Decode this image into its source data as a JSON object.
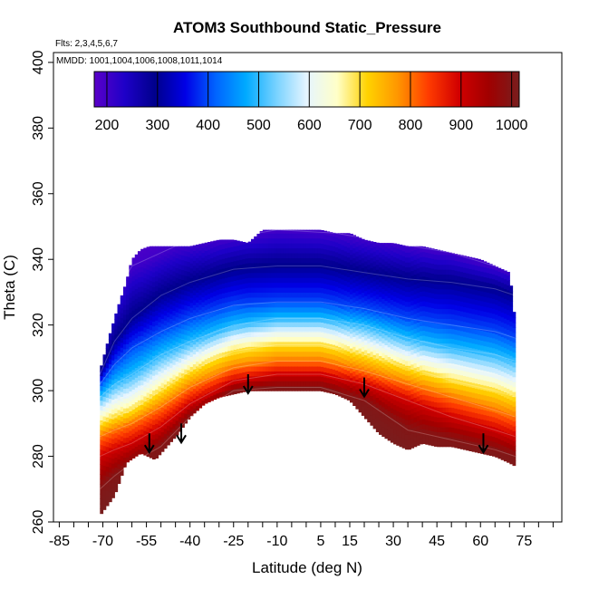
{
  "chart_data": {
    "type": "heatmap",
    "title": "ATOM3 Southbound Static_Pressure",
    "flights_label": "Flts: 2,3,4,5,6,7",
    "dates_label": "MMDD: 1001,1004,1006,1008,1011,1014",
    "xlabel": "Latitude (deg N)",
    "ylabel": "Theta (C)",
    "xlim": [
      -87,
      88
    ],
    "ylim": [
      260,
      403
    ],
    "x_tick_labels": [
      "-85",
      "-70",
      "-55",
      "-40",
      "-25",
      "-10",
      "5",
      "15",
      "30",
      "45",
      "60",
      "75"
    ],
    "x_minor_ticks": [
      -85,
      -80,
      -75,
      -70,
      -65,
      -60,
      -55,
      -50,
      -45,
      -40,
      -35,
      -30,
      -25,
      -20,
      -15,
      -10,
      -5,
      0,
      5,
      10,
      15,
      20,
      25,
      30,
      35,
      40,
      45,
      50,
      55,
      60,
      65,
      70,
      75,
      80,
      85
    ],
    "y_ticks": [
      "260",
      "280",
      "300",
      "320",
      "340",
      "360",
      "380",
      "400"
    ],
    "colorbar": {
      "labels": [
        "200",
        "300",
        "400",
        "500",
        "600",
        "700",
        "800",
        "900",
        "1000"
      ],
      "range": [
        175,
        1015
      ],
      "colors": [
        "#5a00c8",
        "#1e00c8",
        "#00008c",
        "#0000e6",
        "#0064ff",
        "#00aaff",
        "#78d2ff",
        "#e6f5ff",
        "#ffffc8",
        "#ffd200",
        "#ff9600",
        "#ff3c00",
        "#d20000",
        "#a00000",
        "#781e1e"
      ]
    },
    "lower_boundary": [
      [
        -71,
        262
      ],
      [
        -66,
        268
      ],
      [
        -62,
        278
      ],
      [
        -57,
        281
      ],
      [
        -52,
        279
      ],
      [
        -48,
        283
      ],
      [
        -44,
        287
      ],
      [
        -40,
        292
      ],
      [
        -35,
        296
      ],
      [
        -30,
        298
      ],
      [
        -25,
        299
      ],
      [
        -20,
        300
      ],
      [
        -15,
        300
      ],
      [
        -10,
        300
      ],
      [
        -5,
        300
      ],
      [
        0,
        300
      ],
      [
        5,
        300
      ],
      [
        10,
        299
      ],
      [
        15,
        297
      ],
      [
        20,
        292
      ],
      [
        25,
        287
      ],
      [
        30,
        284
      ],
      [
        35,
        282
      ],
      [
        40,
        284
      ],
      [
        45,
        283
      ],
      [
        50,
        283
      ],
      [
        55,
        282
      ],
      [
        60,
        281
      ],
      [
        65,
        280
      ],
      [
        70,
        278
      ],
      [
        72,
        277
      ]
    ],
    "upper_boundary": [
      [
        -71,
        306
      ],
      [
        -68,
        316
      ],
      [
        -65,
        325
      ],
      [
        -62,
        333
      ],
      [
        -60,
        340
      ],
      [
        -57,
        343
      ],
      [
        -54,
        344
      ],
      [
        -50,
        344
      ],
      [
        -45,
        344
      ],
      [
        -40,
        344
      ],
      [
        -35,
        345
      ],
      [
        -30,
        346
      ],
      [
        -25,
        346
      ],
      [
        -20,
        345
      ],
      [
        -15,
        349
      ],
      [
        -10,
        349
      ],
      [
        -5,
        349
      ],
      [
        0,
        349
      ],
      [
        5,
        349
      ],
      [
        10,
        348
      ],
      [
        15,
        348
      ],
      [
        20,
        346
      ],
      [
        25,
        345
      ],
      [
        30,
        345
      ],
      [
        35,
        344
      ],
      [
        40,
        344
      ],
      [
        45,
        343
      ],
      [
        50,
        342
      ],
      [
        55,
        341
      ],
      [
        60,
        340
      ],
      [
        65,
        338
      ],
      [
        70,
        336
      ],
      [
        72,
        320
      ]
    ],
    "isobars": [
      {
        "level": 200,
        "points": [
          [
            -71,
            312
          ],
          [
            -65,
            330
          ],
          [
            -60,
            338
          ],
          [
            -45,
            344
          ],
          [
            -30,
            346
          ],
          [
            -10,
            349
          ],
          [
            10,
            348
          ],
          [
            30,
            345
          ],
          [
            50,
            342
          ],
          [
            72,
            336
          ]
        ]
      },
      {
        "level": 300,
        "points": [
          [
            -71,
            305
          ],
          [
            -66,
            315
          ],
          [
            -60,
            322
          ],
          [
            -50,
            329
          ],
          [
            -40,
            333
          ],
          [
            -25,
            337
          ],
          [
            -10,
            338
          ],
          [
            5,
            338
          ],
          [
            20,
            336
          ],
          [
            35,
            334
          ],
          [
            50,
            333
          ],
          [
            65,
            331
          ],
          [
            72,
            329
          ]
        ]
      },
      {
        "level": 400,
        "points": [
          [
            -71,
            302
          ],
          [
            -66,
            308
          ],
          [
            -60,
            313
          ],
          [
            -50,
            318
          ],
          [
            -40,
            322
          ],
          [
            -25,
            326
          ],
          [
            -10,
            327
          ],
          [
            5,
            327
          ],
          [
            20,
            325
          ],
          [
            35,
            322
          ],
          [
            50,
            320
          ],
          [
            65,
            318
          ],
          [
            72,
            316
          ]
        ]
      },
      {
        "level": 500,
        "points": [
          [
            -71,
            298
          ],
          [
            -66,
            302
          ],
          [
            -60,
            305
          ],
          [
            -50,
            311
          ],
          [
            -40,
            315
          ],
          [
            -25,
            320
          ],
          [
            -10,
            322
          ],
          [
            5,
            322
          ],
          [
            20,
            320
          ],
          [
            35,
            316
          ],
          [
            50,
            313
          ],
          [
            65,
            311
          ],
          [
            72,
            309
          ]
        ]
      },
      {
        "level": 600,
        "points": [
          [
            -71,
            294
          ],
          [
            -66,
            297
          ],
          [
            -60,
            299
          ],
          [
            -50,
            305
          ],
          [
            -40,
            310
          ],
          [
            -25,
            316
          ],
          [
            -10,
            318
          ],
          [
            5,
            318
          ],
          [
            20,
            315
          ],
          [
            35,
            311
          ],
          [
            50,
            308
          ],
          [
            65,
            305
          ],
          [
            72,
            303
          ]
        ]
      },
      {
        "level": 700,
        "points": [
          [
            -71,
            290
          ],
          [
            -66,
            292
          ],
          [
            -60,
            294
          ],
          [
            -50,
            300
          ],
          [
            -40,
            306
          ],
          [
            -25,
            312
          ],
          [
            -10,
            314
          ],
          [
            5,
            314
          ],
          [
            20,
            311
          ],
          [
            35,
            307
          ],
          [
            50,
            303
          ],
          [
            65,
            300
          ],
          [
            72,
            298
          ]
        ]
      },
      {
        "level": 800,
        "points": [
          [
            -71,
            286
          ],
          [
            -66,
            288
          ],
          [
            -60,
            290
          ],
          [
            -50,
            295
          ],
          [
            -40,
            301
          ],
          [
            -25,
            307
          ],
          [
            -10,
            309
          ],
          [
            5,
            309
          ],
          [
            20,
            306
          ],
          [
            35,
            302
          ],
          [
            50,
            298
          ],
          [
            65,
            294
          ],
          [
            72,
            292
          ]
        ]
      },
      {
        "level": 900,
        "points": [
          [
            -71,
            280
          ],
          [
            -66,
            282
          ],
          [
            -60,
            284
          ],
          [
            -50,
            289
          ],
          [
            -40,
            296
          ],
          [
            -25,
            303
          ],
          [
            -10,
            305
          ],
          [
            5,
            305
          ],
          [
            20,
            302
          ],
          [
            35,
            297
          ],
          [
            50,
            292
          ],
          [
            65,
            288
          ],
          [
            72,
            286
          ]
        ]
      },
      {
        "level": 1000,
        "points": [
          [
            -71,
            270
          ],
          [
            -66,
            274
          ],
          [
            -60,
            278
          ],
          [
            -50,
            283
          ],
          [
            -40,
            292
          ],
          [
            -25,
            300
          ],
          [
            -10,
            301
          ],
          [
            5,
            301
          ],
          [
            20,
            297
          ],
          [
            35,
            288
          ],
          [
            50,
            285
          ],
          [
            65,
            282
          ],
          [
            72,
            280
          ]
        ]
      }
    ],
    "arrows": [
      [
        -54,
        287
      ],
      [
        -43,
        290
      ],
      [
        -20,
        305
      ],
      [
        20,
        304
      ],
      [
        61,
        287
      ]
    ]
  }
}
